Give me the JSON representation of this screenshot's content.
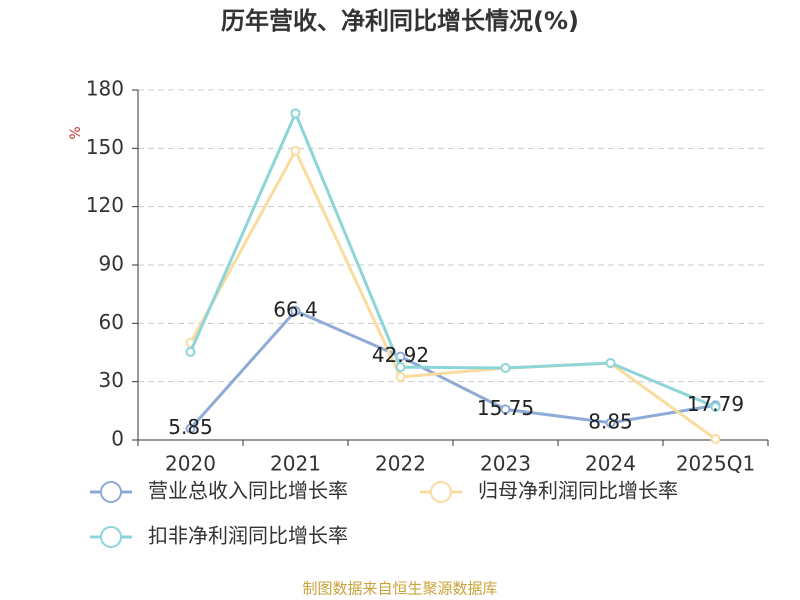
{
  "chart_data": {
    "type": "line",
    "title": "历年营收、净利同比增长情况(%)",
    "y_label": "%",
    "categories": [
      "2020",
      "2021",
      "2022",
      "2023",
      "2024",
      "2025Q1"
    ],
    "series": [
      {
        "name": "营业总收入同比增长率",
        "color": "#8eaad6",
        "values": [
          5.85,
          66.4,
          42.92,
          15.75,
          8.85,
          17.79
        ],
        "show_labels": true
      },
      {
        "name": "归母净利润同比增长率",
        "color": "#f9dc9f",
        "values": [
          50,
          148.7,
          32.4,
          37,
          39.5,
          0.5
        ],
        "show_labels": false
      },
      {
        "name": "扣非净利润同比增长率",
        "color": "#8dd5d8",
        "values": [
          45.3,
          168,
          37.5,
          37,
          39.6,
          17
        ],
        "show_labels": false
      }
    ],
    "ylim": [
      0,
      180
    ],
    "yticks": [
      0,
      30,
      60,
      90,
      120,
      150,
      180
    ],
    "grid": true,
    "source": "制图数据来自恒生聚源数据库"
  }
}
